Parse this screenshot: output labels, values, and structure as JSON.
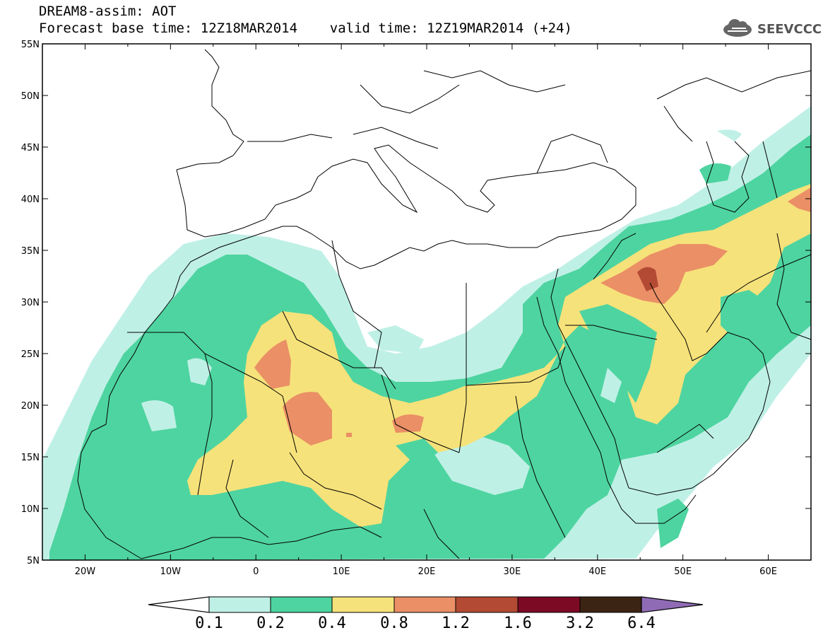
{
  "header": {
    "title_line1": "DREAM8-assim: AOT",
    "title_line2": "Forecast base time: 12Z18MAR2014    valid time: 12Z19MAR2014 (+24)",
    "logo_text": "SEEVCCC"
  },
  "map": {
    "lat_labels": [
      "55N",
      "50N",
      "45N",
      "40N",
      "35N",
      "30N",
      "25N",
      "20N",
      "15N",
      "10N",
      "5N"
    ],
    "lon_labels": [
      "20W",
      "10W",
      "0",
      "10E",
      "20E",
      "30E",
      "40E",
      "50E",
      "60E"
    ],
    "lat_range": [
      5,
      55
    ],
    "lon_range": [
      -25,
      65
    ]
  },
  "colorbar": {
    "levels": [
      "0.1",
      "0.2",
      "0.4",
      "0.8",
      "1.2",
      "1.6",
      "3.2",
      "6.4"
    ],
    "colors": {
      "c1": "#bff0e6",
      "c2": "#4ed4a0",
      "c3": "#f6e27a",
      "c4": "#ea8f66",
      "c5": "#b34a34",
      "c6": "#7c0a25",
      "c7": "#3b2413",
      "c8": "#8f6bb5"
    }
  }
}
